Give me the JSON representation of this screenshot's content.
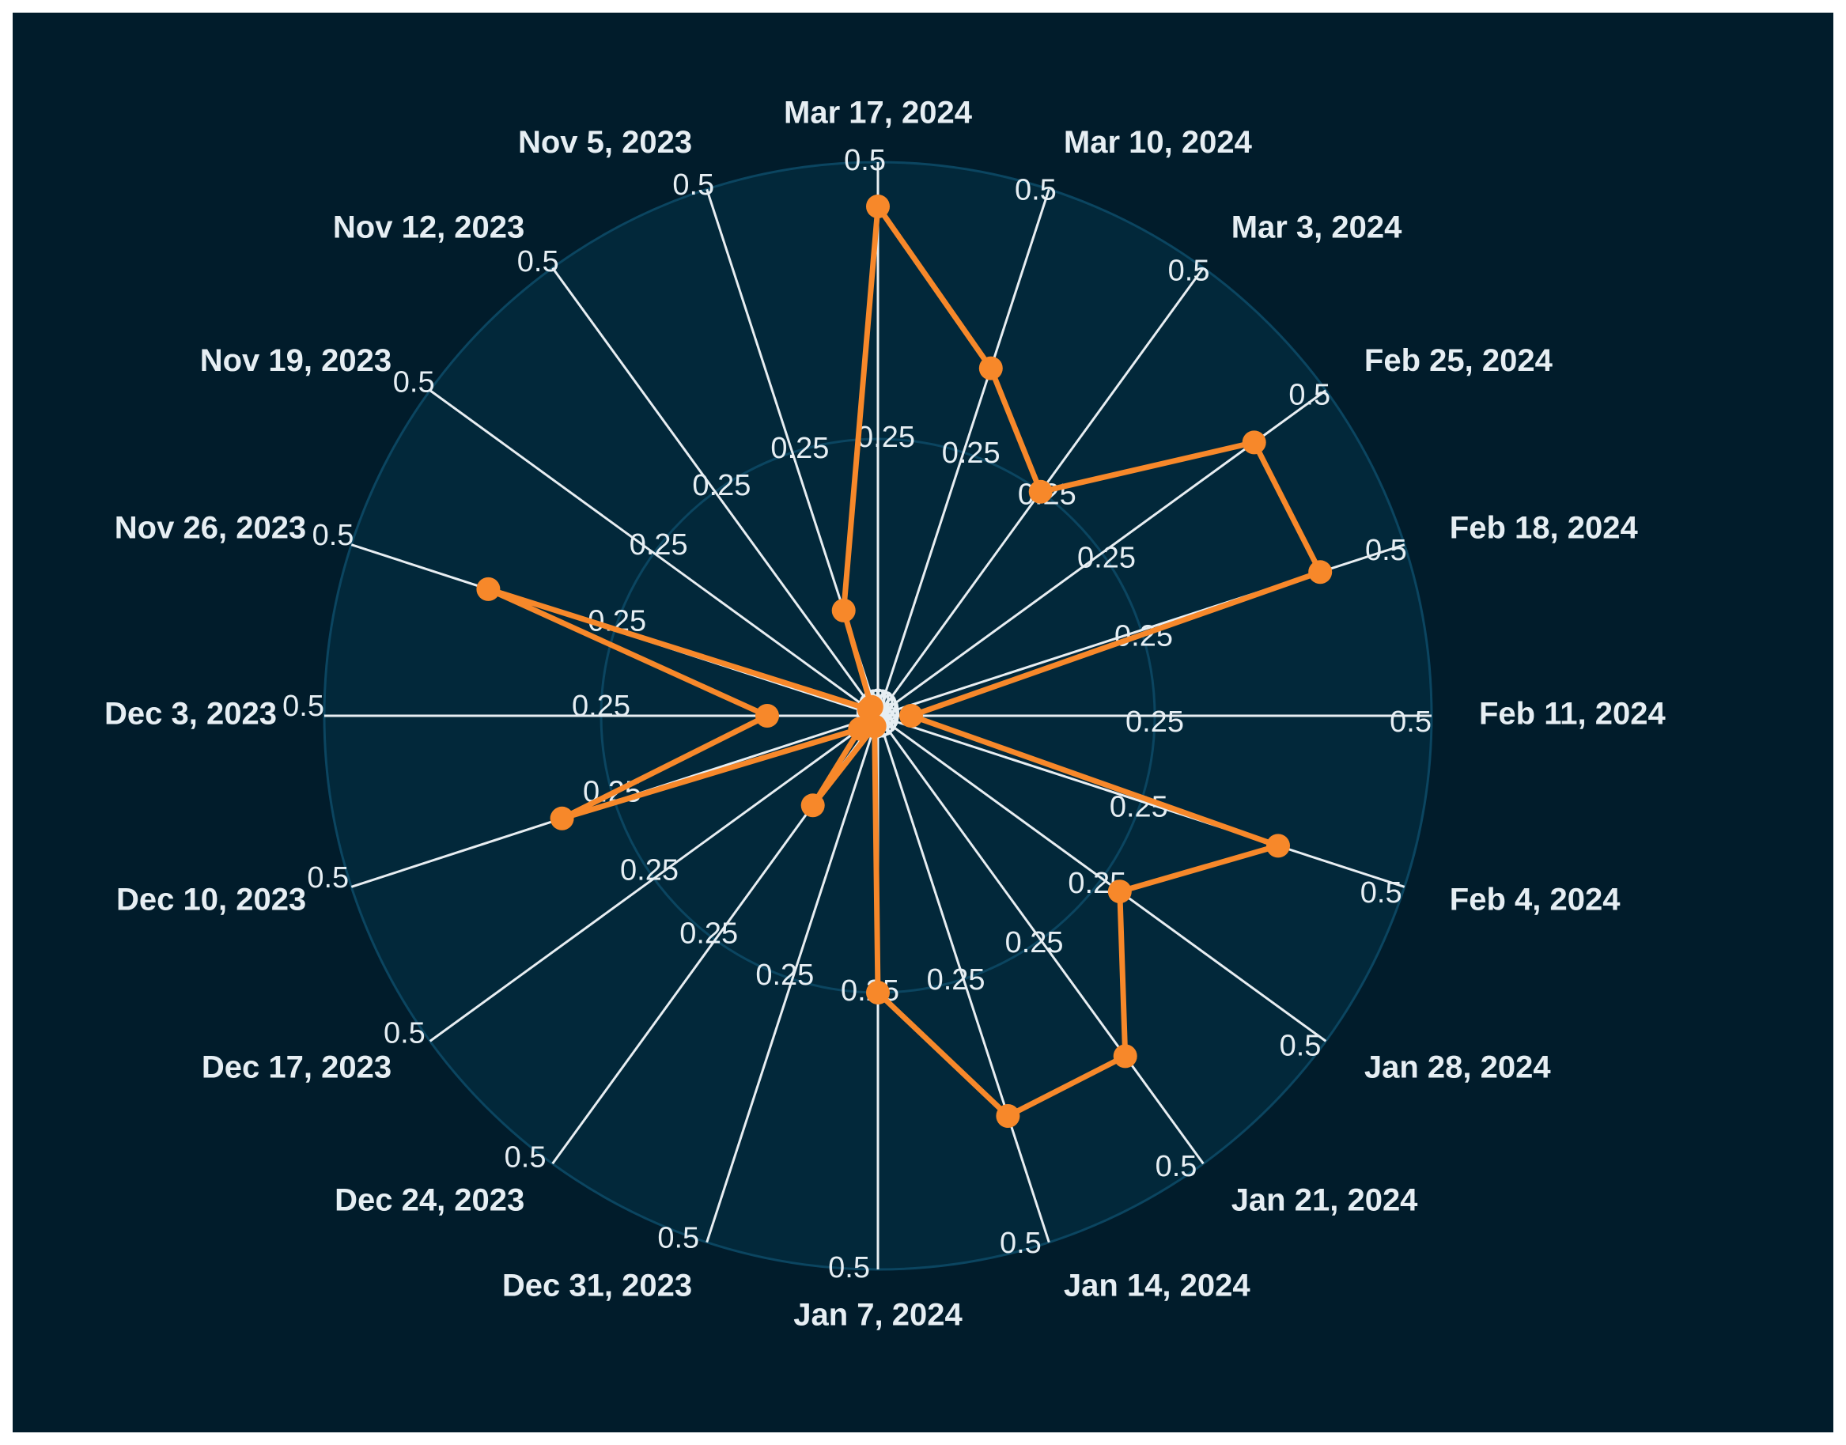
{
  "theme": {
    "panel_bg": "#011c2b",
    "plot_bg": "#02283a",
    "grid_circle": "#0b4560",
    "spoke": "#e8eef2",
    "series_color": "#f7882a",
    "text": "#e6eef3"
  },
  "chart_data": {
    "type": "radar",
    "title": "",
    "direction": "clockwise",
    "start_category": "Mar 17, 2024",
    "radial_range": [
      0,
      0.5
    ],
    "radial_ticks": [
      0,
      0.25,
      0.5
    ],
    "grid": true,
    "categories": [
      "Mar 17, 2024",
      "Mar 10, 2024",
      "Mar 3, 2024",
      "Feb 25, 2024",
      "Feb 18, 2024",
      "Feb 11, 2024",
      "Feb 4, 2024",
      "Jan 28, 2024",
      "Jan 21, 2024",
      "Jan 14, 2024",
      "Jan 7, 2024",
      "Dec 31, 2023",
      "Dec 24, 2023",
      "Dec 17, 2023",
      "Dec 10, 2023",
      "Dec 3, 2023",
      "Nov 26, 2023",
      "Nov 19, 2023",
      "Nov 12, 2023",
      "Nov 5, 2023"
    ],
    "values": [
      0.46,
      0.33,
      0.25,
      0.42,
      0.42,
      0.03,
      0.38,
      0.27,
      0.38,
      0.38,
      0.25,
      0.01,
      0.1,
      0.02,
      0.3,
      0.1,
      0.37,
      0.01,
      0.01,
      0.1
    ]
  }
}
